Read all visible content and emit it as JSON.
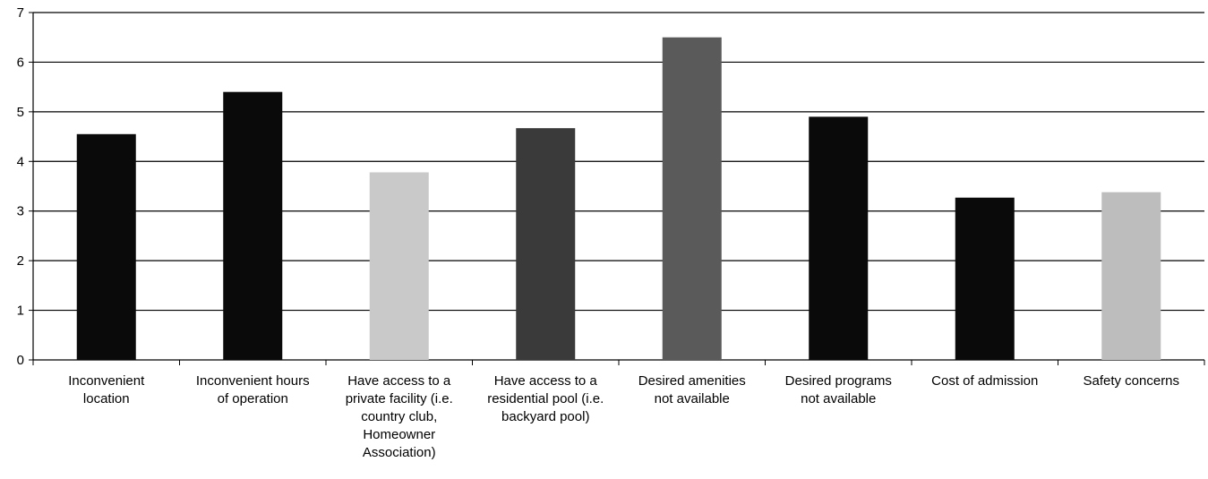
{
  "chart_data": {
    "type": "bar",
    "title": "",
    "xlabel": "",
    "ylabel": "",
    "ylim": [
      0,
      7
    ],
    "yticks": [
      0,
      1,
      2,
      3,
      4,
      5,
      6,
      7
    ],
    "grid": true,
    "categories": [
      "Inconvenient\nlocation",
      "Inconvenient hours\nof operation",
      "Have access to a\nprivate facility (i.e.\ncountry club,\nHomeowner\nAssociation)",
      "Have access to a\nresidential pool (i.e.\nbackyard pool)",
      "Desired amenities\nnot available",
      "Desired programs\nnot available",
      "Cost of admission",
      "Safety concerns"
    ],
    "values": [
      4.55,
      5.4,
      3.78,
      4.67,
      6.5,
      4.9,
      3.27,
      3.38
    ],
    "bar_colors": [
      "#0a0a0a",
      "#0a0a0a",
      "#c9c9c9",
      "#3a3a3a",
      "#5a5a5a",
      "#0a0a0a",
      "#0a0a0a",
      "#bdbdbd"
    ]
  }
}
